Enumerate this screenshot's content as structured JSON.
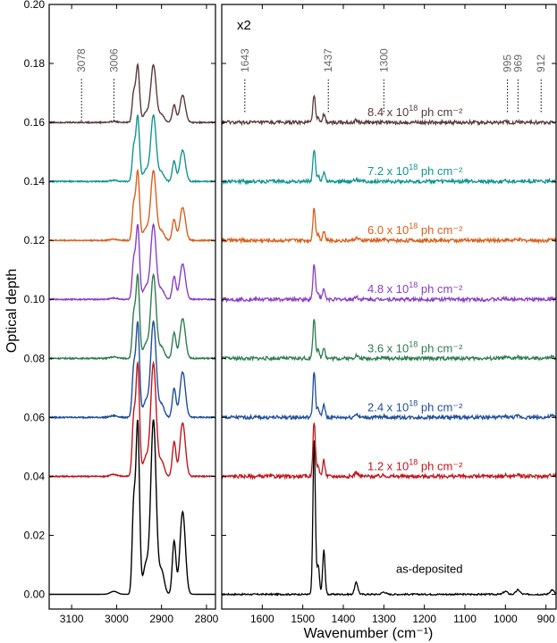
{
  "chart_data": {
    "type": "line",
    "ylabel": "Optical depth",
    "xlabel": "Wavenumber (cm⁻¹)",
    "ylim": [
      -0.005,
      0.2
    ],
    "yticks": [
      "0.00",
      "0.02",
      "0.04",
      "0.06",
      "0.08",
      "0.10",
      "0.12",
      "0.14",
      "0.16",
      "0.18",
      "0.20"
    ],
    "panels": [
      {
        "id": "left",
        "xrange": [
          3150,
          2780
        ],
        "xticks": [
          3100,
          3000,
          2900,
          2800
        ],
        "xtick_labels": [
          "3100",
          "3000",
          "2900",
          "2800"
        ],
        "peaks": [
          {
            "label": "3078",
            "x": 3078
          },
          {
            "label": "3006",
            "x": 3006
          }
        ]
      },
      {
        "id": "right",
        "scale_note": "x2",
        "xrange": [
          1700,
          875
        ],
        "xticks": [
          1600,
          1500,
          1400,
          1300,
          1200,
          1100,
          1000,
          900
        ],
        "xtick_labels": [
          "1600",
          "1500",
          "1400",
          "1300",
          "1200",
          "1100",
          "1000",
          "900"
        ],
        "peaks": [
          {
            "label": "1643",
            "x": 1643
          },
          {
            "label": "1437",
            "x": 1437
          },
          {
            "label": "1300",
            "x": 1300
          },
          {
            "label": "995",
            "x": 995
          },
          {
            "label": "969",
            "x": 969
          },
          {
            "label": "912",
            "x": 912
          }
        ]
      }
    ],
    "series": [
      {
        "name": "as-deposited",
        "label_main": "as-deposited",
        "label_sup": "",
        "label_tail": "",
        "offset": 0.0,
        "scale": 1.0,
        "color": "#000000"
      },
      {
        "name": "1.2",
        "label_main": "1.2 x 10",
        "label_sup": "18",
        "label_tail": " ph cm⁻²",
        "offset": 0.04,
        "scale": 0.65,
        "color": "#c0161c"
      },
      {
        "name": "2.4",
        "label_main": "2.4 x 10",
        "label_sup": "18",
        "label_tail": " ph cm⁻²",
        "offset": 0.06,
        "scale": 0.55,
        "color": "#1f4e9c"
      },
      {
        "name": "3.6",
        "label_main": "3.6 x 10",
        "label_sup": "18",
        "label_tail": " ph cm⁻²",
        "offset": 0.08,
        "scale": 0.48,
        "color": "#2e7d4f"
      },
      {
        "name": "4.8",
        "label_main": "4.8 x 10",
        "label_sup": "18",
        "label_tail": " ph cm⁻²",
        "offset": 0.1,
        "scale": 0.43,
        "color": "#8a3fc4"
      },
      {
        "name": "6.0",
        "label_main": "6.0 x 10",
        "label_sup": "18",
        "label_tail": " ph cm⁻²",
        "offset": 0.12,
        "scale": 0.4,
        "color": "#d8601a"
      },
      {
        "name": "7.2",
        "label_main": "7.2 x 10",
        "label_sup": "18",
        "label_tail": " ph cm⁻²",
        "offset": 0.14,
        "scale": 0.38,
        "color": "#129590"
      },
      {
        "name": "8.4",
        "label_main": "8.4 x 10",
        "label_sup": "18",
        "label_tail": " ph cm⁻²",
        "offset": 0.16,
        "scale": 0.33,
        "color": "#5a3a3a"
      }
    ],
    "bands_CH": [
      {
        "x": 2962,
        "h": 0.029,
        "w": 3.5
      },
      {
        "x": 2953,
        "h": 0.058,
        "w": 4.0
      },
      {
        "x": 2935,
        "h": 0.01,
        "w": 6
      },
      {
        "x": 2918,
        "h": 0.059,
        "w": 6
      },
      {
        "x": 2900,
        "h": 0.008,
        "w": 6
      },
      {
        "x": 2872,
        "h": 0.018,
        "w": 4
      },
      {
        "x": 2853,
        "h": 0.028,
        "w": 6
      },
      {
        "x": 3006,
        "h": 0.001,
        "w": 8
      }
    ],
    "bands_FP": [
      {
        "x": 1472,
        "h": 0.052,
        "w": 3
      },
      {
        "x": 1462,
        "h": 0.01,
        "w": 3
      },
      {
        "x": 1448,
        "h": 0.015,
        "w": 3
      },
      {
        "x": 1368,
        "h": 0.004,
        "w": 4
      },
      {
        "x": 1300,
        "h": 0.0008,
        "w": 5
      },
      {
        "x": 1000,
        "h": 0.001,
        "w": 5
      },
      {
        "x": 969,
        "h": 0.0015,
        "w": 5
      },
      {
        "x": 885,
        "h": 0.0015,
        "w": 5
      }
    ]
  }
}
